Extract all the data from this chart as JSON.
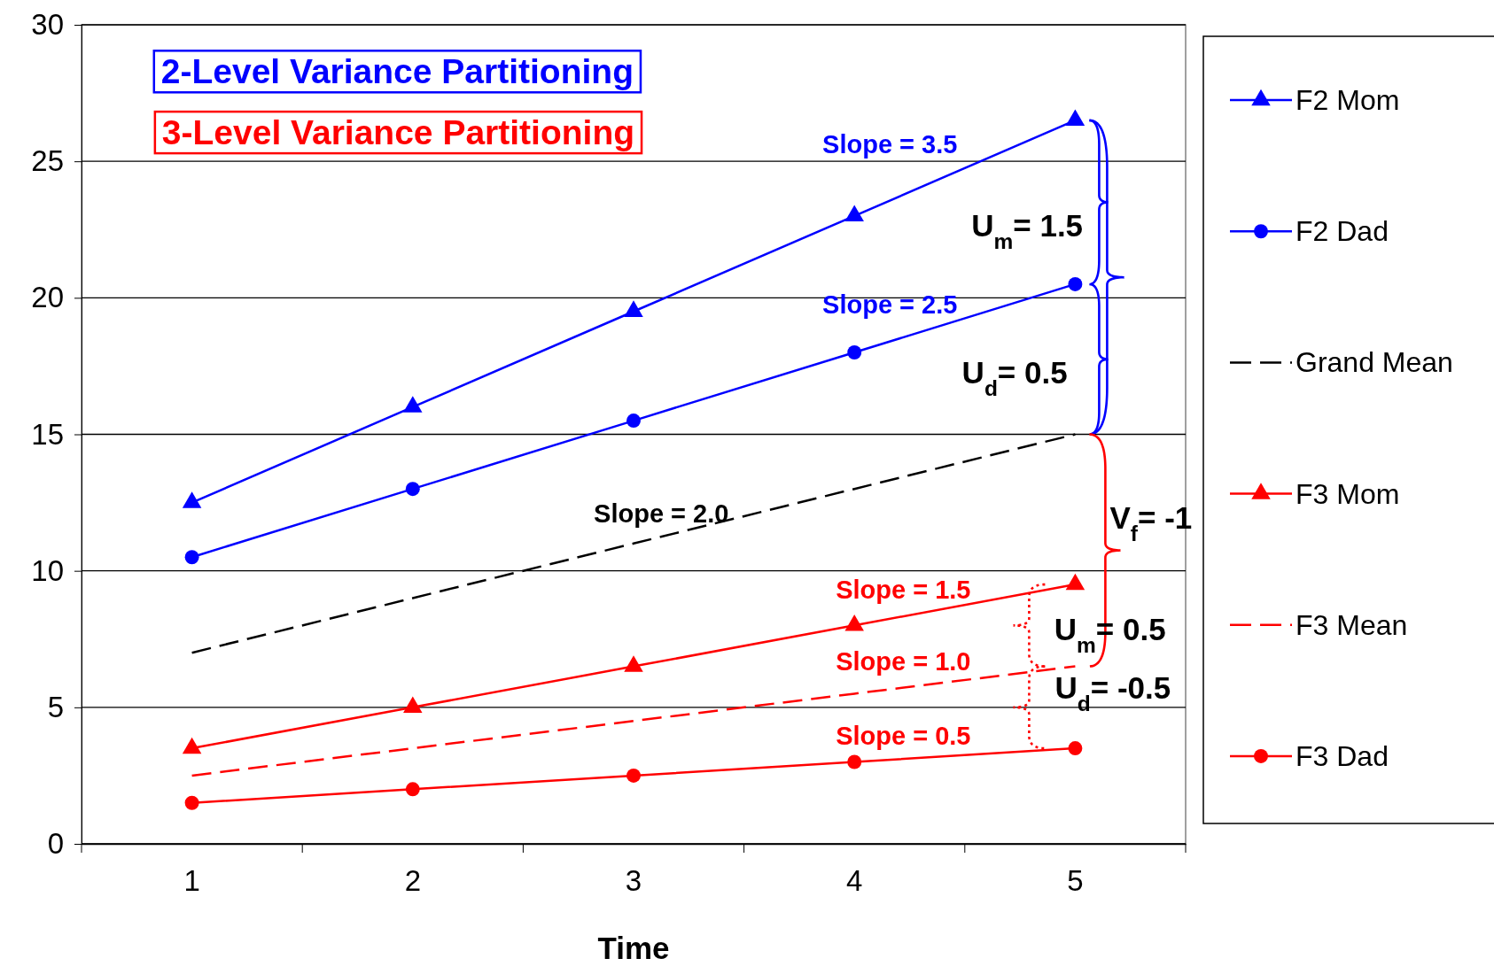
{
  "chart_data": {
    "type": "line",
    "xlabel": "Time",
    "categories": [
      "1",
      "2",
      "3",
      "4",
      "5"
    ],
    "ylim": [
      0,
      30
    ],
    "yticks": [
      0,
      5,
      10,
      15,
      20,
      25,
      30
    ],
    "grid": "y",
    "legend": "right",
    "series": [
      {
        "name": "F2 Mom",
        "color": "#0000ff",
        "marker": "triangle",
        "line_style": "solid",
        "values": [
          12.5,
          16,
          19.5,
          23,
          26.5
        ]
      },
      {
        "name": "F2 Dad",
        "color": "#0000ff",
        "marker": "circle",
        "line_style": "solid",
        "values": [
          10.5,
          13,
          15.5,
          18,
          20.5
        ]
      },
      {
        "name": "Grand Mean",
        "color": "#000000",
        "marker": "none",
        "line_style": "dashed",
        "values": [
          7,
          9,
          11,
          13,
          15
        ]
      },
      {
        "name": "F3 Mom",
        "color": "#ff0000",
        "marker": "triangle",
        "line_style": "solid",
        "values": [
          3.5,
          5,
          6.5,
          8,
          9.5
        ]
      },
      {
        "name": "F3 Mean",
        "color": "#ff0000",
        "marker": "none",
        "line_style": "dashed",
        "values": [
          2.5,
          3.5,
          4.5,
          5.5,
          6.5
        ]
      },
      {
        "name": "F3 Dad",
        "color": "#ff0000",
        "marker": "circle",
        "line_style": "solid",
        "values": [
          1.5,
          2,
          2.5,
          3,
          3.5
        ]
      }
    ],
    "annotations": [
      "2-Level Variance Partitioning",
      "3-Level Variance Partitioning",
      "Slope = 3.5",
      "Slope = 2.5",
      "Slope = 2.0",
      "Slope = 1.5",
      "Slope = 1.0",
      "Slope = 0.5",
      "U$_{m}$= 1.5",
      "U$_{d}$= 0.5",
      "V$_{f}$= -1",
      "U$_{m}$= 0.5",
      "U$_{d}$= -0.5"
    ]
  }
}
